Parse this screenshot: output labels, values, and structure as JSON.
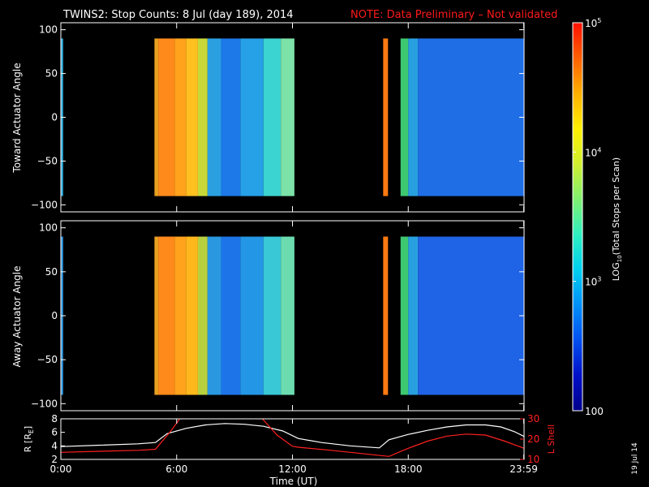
{
  "title": {
    "main": "TWINS2: Stop Counts:  8 Jul (day 189), 2014",
    "note": "NOTE: Data Preliminary – Not validated",
    "note_color": "#ff1a1a"
  },
  "date_stamp": "19 Jul 14",
  "chart_data": [
    {
      "type": "heatmap",
      "panel": "toward",
      "ylabel": "Toward Actuator Angle",
      "ylim": [
        -108,
        108
      ],
      "yticks": [
        100,
        50,
        0,
        -50,
        -100
      ],
      "ytick_labels": [
        "100",
        "50",
        "0",
        "−50",
        "−100"
      ],
      "x_range_hours": [
        0,
        24
      ],
      "y_coverage_deg": [
        -90,
        90
      ],
      "background": "#000000",
      "colorbar_ref": "log10_total_stops",
      "columns": [
        {
          "t0": 0.0,
          "t1": 0.12,
          "color": "#2aa8d8"
        },
        {
          "t0": 4.85,
          "t1": 5.05,
          "color": "#e8a020"
        },
        {
          "t0": 5.05,
          "t1": 5.9,
          "color": "#ff8a1c"
        },
        {
          "t0": 5.9,
          "t1": 6.5,
          "color": "#ffa21c"
        },
        {
          "t0": 6.5,
          "t1": 7.1,
          "color": "#ffc020"
        },
        {
          "t0": 7.1,
          "t1": 7.6,
          "color": "#c8d838"
        },
        {
          "t0": 7.6,
          "t1": 8.3,
          "color": "#2aa0e0"
        },
        {
          "t0": 8.3,
          "t1": 9.3,
          "color": "#1d78e8"
        },
        {
          "t0": 9.3,
          "t1": 10.5,
          "color": "#26a0e6"
        },
        {
          "t0": 10.5,
          "t1": 11.4,
          "color": "#3cd4d0"
        },
        {
          "t0": 11.4,
          "t1": 12.1,
          "color": "#7ce2a8"
        },
        {
          "t0": 16.7,
          "t1": 16.95,
          "color": "#ff7a10"
        },
        {
          "t0": 17.6,
          "t1": 18.0,
          "color": "#3ec870"
        },
        {
          "t0": 18.0,
          "t1": 18.5,
          "color": "#28a0e0"
        },
        {
          "t0": 18.5,
          "t1": 23.99,
          "color": "#1f6ee6"
        }
      ]
    },
    {
      "type": "heatmap",
      "panel": "away",
      "ylabel": "Away Actuator Angle",
      "ylim": [
        -108,
        108
      ],
      "yticks": [
        100,
        50,
        0,
        -50,
        -100
      ],
      "ytick_labels": [
        "100",
        "50",
        "0",
        "−50",
        "−100"
      ],
      "x_range_hours": [
        0,
        24
      ],
      "y_coverage_deg": [
        -90,
        90
      ],
      "background": "#000000",
      "colorbar_ref": "log10_total_stops",
      "columns": [
        {
          "t0": 0.0,
          "t1": 0.12,
          "color": "#2a90d8"
        },
        {
          "t0": 4.85,
          "t1": 5.05,
          "color": "#e8a020"
        },
        {
          "t0": 5.05,
          "t1": 5.9,
          "color": "#ff8a1c"
        },
        {
          "t0": 5.9,
          "t1": 6.5,
          "color": "#ffa21c"
        },
        {
          "t0": 6.5,
          "t1": 7.1,
          "color": "#ffb81c"
        },
        {
          "t0": 7.1,
          "t1": 7.6,
          "color": "#b8d040"
        },
        {
          "t0": 7.6,
          "t1": 8.3,
          "color": "#2a98e0"
        },
        {
          "t0": 8.3,
          "t1": 9.3,
          "color": "#1d74e8"
        },
        {
          "t0": 9.3,
          "t1": 10.5,
          "color": "#2496e6"
        },
        {
          "t0": 10.5,
          "t1": 11.4,
          "color": "#38c8d6"
        },
        {
          "t0": 11.4,
          "t1": 12.1,
          "color": "#6cdcb0"
        },
        {
          "t0": 16.7,
          "t1": 16.95,
          "color": "#ff7a10"
        },
        {
          "t0": 17.6,
          "t1": 18.0,
          "color": "#3ec870"
        },
        {
          "t0": 18.0,
          "t1": 18.5,
          "color": "#28a0e0"
        },
        {
          "t0": 18.5,
          "t1": 23.99,
          "color": "#1f64e6"
        }
      ]
    },
    {
      "type": "line",
      "panel": "orbit",
      "xlabel": "Time (UT)",
      "xticks_hours": [
        0,
        6,
        12,
        18,
        23.983
      ],
      "xtick_labels": [
        "0:00",
        "6:00",
        "12:00",
        "18:00",
        "23:59"
      ],
      "xlim_hours": [
        0,
        24
      ],
      "left_axis": {
        "label": "R [R",
        "label_sub": "E",
        "label_tail": "]",
        "ylim": [
          2,
          8
        ],
        "yticks": [
          2,
          4,
          6,
          8
        ]
      },
      "right_axis": {
        "label": "L Shell",
        "ylim": [
          10,
          30
        ],
        "yticks": [
          10,
          20,
          30
        ],
        "color": "#ff2020"
      },
      "series": [
        {
          "axis": "left",
          "color": "#ffffff",
          "x": [
            0,
            2,
            4,
            4.9,
            5.5,
            6.5,
            7.5,
            8.5,
            9.5,
            10.5,
            11.5,
            12.3,
            13.5,
            15,
            16.5,
            17,
            18,
            19,
            20,
            21,
            22,
            22.8,
            23.5,
            24
          ],
          "y": [
            3.9,
            4.1,
            4.3,
            4.5,
            5.8,
            6.6,
            7.1,
            7.3,
            7.2,
            6.9,
            6.2,
            5.1,
            4.5,
            4.0,
            3.7,
            4.9,
            5.7,
            6.3,
            6.8,
            7.1,
            7.1,
            6.8,
            6.1,
            5.4
          ]
        },
        {
          "axis": "right",
          "color": "#ff2020",
          "segments": [
            {
              "x": [
                0,
                2,
                4,
                4.9,
                5.7,
                6.2
              ],
              "y": [
                13.5,
                14.0,
                14.5,
                15.0,
                24.0,
                30.5
              ]
            },
            {
              "x": [
                10.4,
                11.2,
                12.0,
                12.3,
                14,
                16,
                17,
                18,
                19,
                20,
                21,
                22,
                23,
                24
              ],
              "y": [
                30.5,
                22.0,
                16.5,
                16.0,
                14.5,
                12.5,
                11.5,
                15.5,
                19.0,
                21.5,
                22.5,
                22.0,
                19.0,
                15.5
              ]
            }
          ]
        }
      ]
    }
  ],
  "colorbar": {
    "id": "log10_total_stops",
    "label_pre": "LOG",
    "label_sub": "10",
    "label_post": "(Total Stops per Scan)",
    "scale": "log",
    "range": [
      100,
      100000
    ],
    "ticks": [
      {
        "value": 100,
        "base": "100",
        "exp": ""
      },
      {
        "value": 1000,
        "base": "10",
        "exp": "3"
      },
      {
        "value": 10000,
        "base": "10",
        "exp": "4"
      },
      {
        "value": 100000,
        "base": "10",
        "exp": "5"
      }
    ],
    "stops": [
      "#00008c",
      "#0010c8",
      "#0050f0",
      "#0090f8",
      "#00d0f0",
      "#30f0c0",
      "#80f070",
      "#d0f030",
      "#fff000",
      "#ffb000",
      "#ff6000",
      "#ff1000"
    ]
  }
}
